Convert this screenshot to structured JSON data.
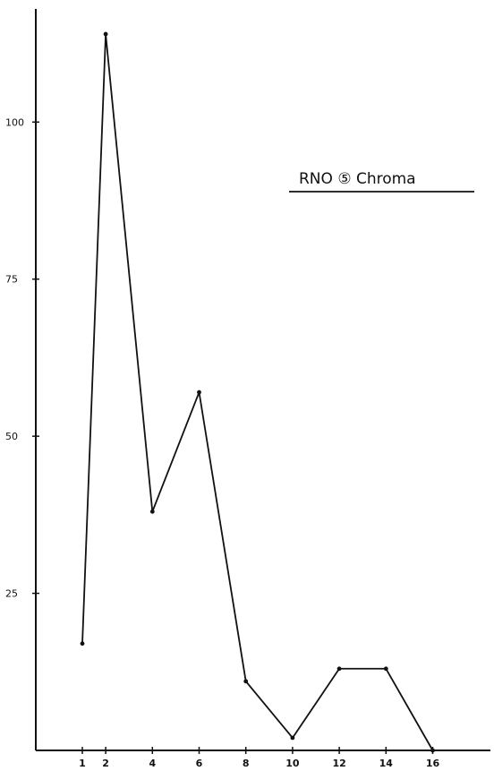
{
  "chart_data": {
    "type": "line",
    "title": "RNO ⑤ Chroma",
    "x": [
      "1",
      "2",
      "4",
      "6",
      "8",
      "10",
      "12",
      "14",
      "16"
    ],
    "series": [
      {
        "values": [
          17,
          114,
          38,
          57,
          11,
          2,
          13,
          13,
          0
        ]
      }
    ],
    "yticks": [
      25,
      50,
      75,
      100
    ],
    "ytick_labels": [
      "25",
      "50",
      "75",
      "100"
    ],
    "ylim": [
      0,
      118
    ],
    "xlabel": "",
    "ylabel": "",
    "grid": false
  }
}
